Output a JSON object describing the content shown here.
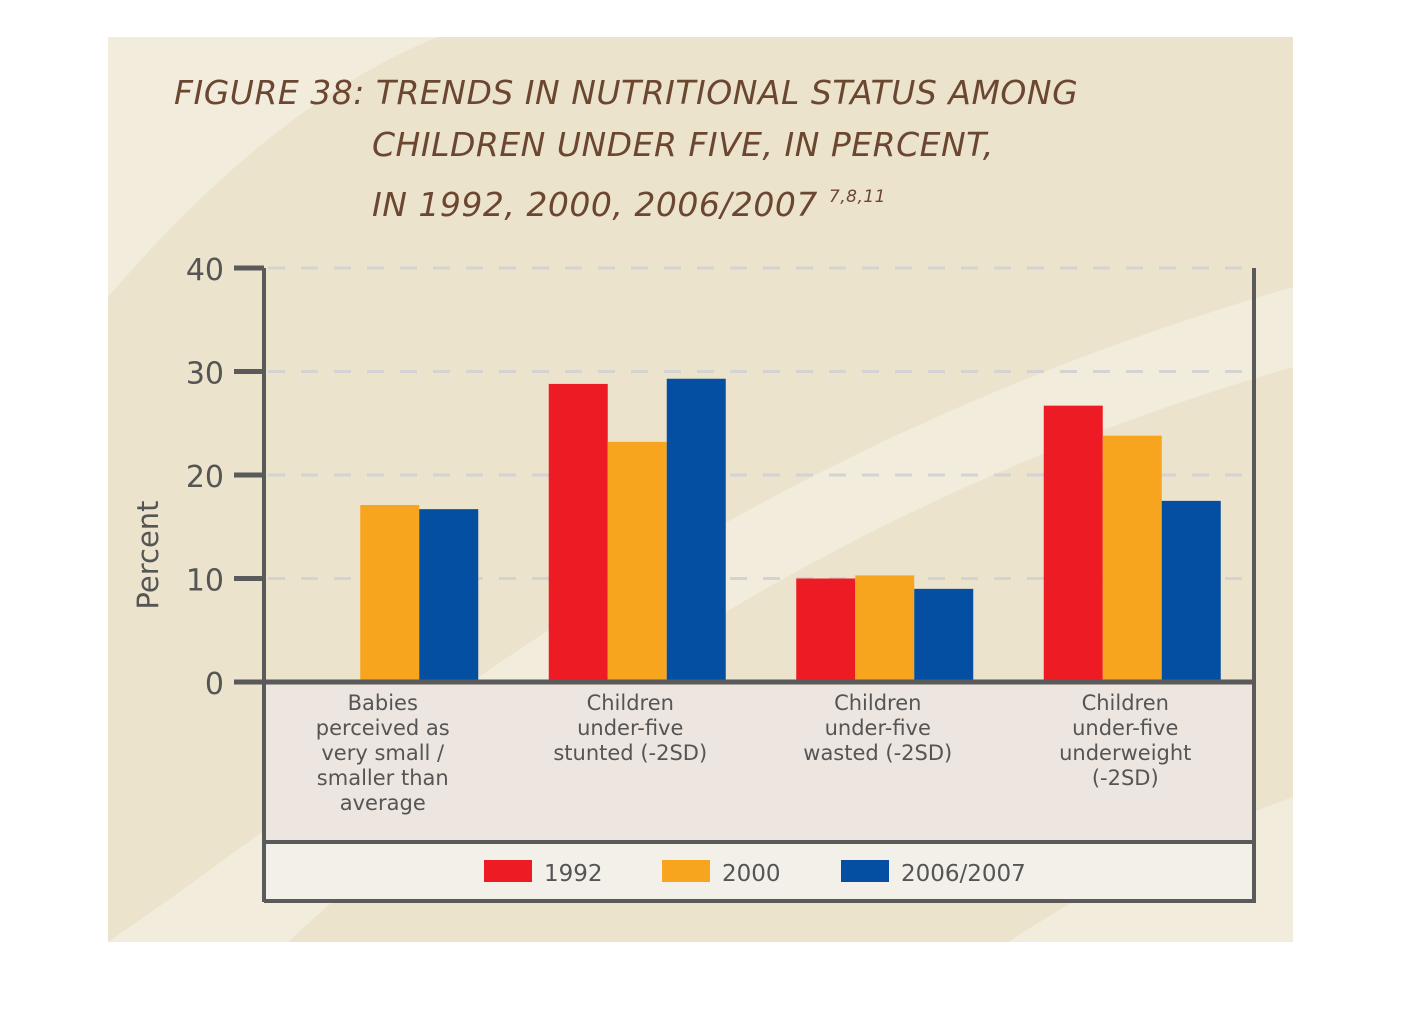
{
  "figure": {
    "title_prefix": "FIGURE 38:",
    "title_line1": "TRENDS IN NUTRITIONAL STATUS AMONG",
    "title_line2": "CHILDREN UNDER FIVE, IN PERCENT,",
    "title_line3": "IN 1992, 2000, 2006/2007",
    "title_refs": "7,8,11"
  },
  "colors": {
    "1992": "#ed1c24",
    "2000": "#f7a51e",
    "2006/2007": "#044fa2",
    "axis": "#5a5a5a",
    "title": "#6b4630"
  },
  "chart_data": {
    "type": "bar",
    "title": "FIGURE 38: TRENDS IN NUTRITIONAL STATUS AMONG CHILDREN UNDER FIVE, IN PERCENT, IN 1992, 2000, 2006/2007",
    "xlabel": "",
    "ylabel": "Percent",
    "ylim": [
      0,
      40
    ],
    "yticks": [
      0,
      10,
      20,
      30,
      40
    ],
    "grid": true,
    "legend_position": "bottom",
    "categories": [
      [
        "Babies",
        "perceived as",
        "very small /",
        "smaller than",
        "average"
      ],
      [
        "Children",
        "under-five",
        "stunted (-2SD)"
      ],
      [
        "Children",
        "under-five",
        "wasted (-2SD)"
      ],
      [
        "Children",
        "under-five",
        "underweight",
        "(-2SD)"
      ]
    ],
    "series": [
      {
        "name": "1992",
        "values": [
          null,
          28.8,
          10.0,
          26.7
        ]
      },
      {
        "name": "2000",
        "values": [
          17.1,
          23.2,
          10.3,
          23.8
        ]
      },
      {
        "name": "2006/2007",
        "values": [
          16.7,
          29.3,
          9.0,
          17.5
        ]
      }
    ]
  }
}
